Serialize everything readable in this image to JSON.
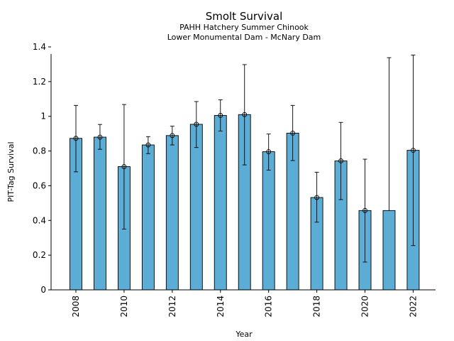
{
  "chart_data": {
    "type": "bar",
    "title": "Smolt Survival",
    "subtitle_lines": [
      "PAHH Hatchery Summer Chinook",
      "Lower Monumental Dam - McNary Dam"
    ],
    "xlabel": "Year",
    "ylabel": "PIT-Tag Survival",
    "ylim": [
      0,
      1.4
    ],
    "yticks": [
      0,
      0.2,
      0.4,
      0.6,
      0.8,
      1,
      1.2,
      1.4
    ],
    "ytick_labels": [
      "0",
      "0.2",
      "0.4",
      "0.6",
      "0.8",
      "1",
      "1.2",
      "1.4"
    ],
    "xtick_labels": [
      "2008",
      "2010",
      "2012",
      "2014",
      "2016",
      "2018",
      "2020",
      "2022"
    ],
    "categories": [
      2008,
      2009,
      2010,
      2011,
      2012,
      2013,
      2014,
      2015,
      2016,
      2017,
      2018,
      2019,
      2020,
      2021,
      2022
    ],
    "values": [
      0.873,
      0.88,
      0.71,
      0.835,
      0.889,
      0.954,
      1.005,
      1.01,
      0.796,
      0.903,
      0.532,
      0.743,
      0.457,
      0.457,
      0.804
    ],
    "error_low": [
      0.68,
      0.81,
      0.35,
      0.785,
      0.835,
      0.82,
      0.915,
      0.72,
      0.69,
      0.745,
      0.39,
      0.52,
      0.16,
      null,
      0.255
    ],
    "error_high": [
      1.063,
      0.953,
      1.068,
      0.883,
      0.943,
      1.085,
      1.095,
      1.298,
      0.898,
      1.063,
      0.678,
      0.965,
      0.753,
      1.338,
      1.353
    ],
    "markers": [
      true,
      true,
      true,
      true,
      true,
      true,
      true,
      true,
      true,
      true,
      true,
      true,
      true,
      false,
      true
    ],
    "bar_color": "#5badd6",
    "edge_color": "#000000",
    "grid": false,
    "legend": "none"
  }
}
